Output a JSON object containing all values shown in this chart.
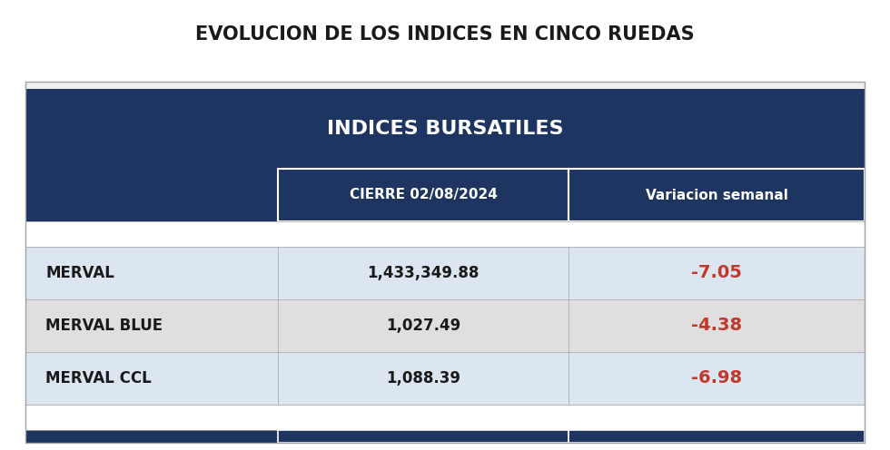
{
  "title": "EVOLUCION DE LOS INDICES EN CINCO RUEDAS",
  "table_header": "INDICES BURSATILES",
  "col_headers": [
    "",
    "CIERRE 02/08/2024",
    "Variacion semanal"
  ],
  "rows": [
    [
      "MERVAL",
      "1,433,349.88",
      "-7.05"
    ],
    [
      "MERVAL BLUE",
      "1,027.49",
      "-4.38"
    ],
    [
      "MERVAL CCL",
      "1,088.39",
      "-6.98"
    ]
  ],
  "bg_color": "#ffffff",
  "title_color": "#1a1a1a",
  "header_bg": "#1e3461",
  "header_text": "#ffffff",
  "col_header_bg": "#1e3461",
  "col_header_text": "#ffffff",
  "row_colors_left": [
    "#dce6f1",
    "#e8e8e8",
    "#dce6f1"
  ],
  "row_colors_mid": [
    "#dce6f1",
    "#e8e8e8",
    "#dce6f1"
  ],
  "row_colors_right": [
    "#dce6f1",
    "#e8e8e8",
    "#dce6f1"
  ],
  "variation_color": "#c0392b",
  "index_text_color": "#1a1a1a",
  "value_text_color": "#1a1a1a",
  "footer_bg": "#1e3461",
  "border_color": "#a0a0a0",
  "inner_border_color": "#ffffff"
}
